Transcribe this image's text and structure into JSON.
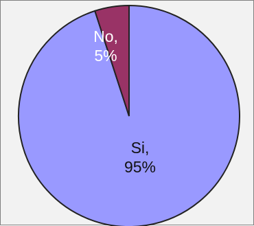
{
  "chart_data": {
    "type": "pie",
    "slices": [
      {
        "label": "Si",
        "value": 95,
        "value_text": "95%",
        "color": "#9999ff",
        "label_color": "#111111"
      },
      {
        "label": "No",
        "value": 5,
        "value_text": "5%",
        "color": "#993366",
        "label_color": "#ffffff"
      }
    ],
    "start_angle_deg": 0,
    "direction": "clockwise",
    "legend": "none",
    "edge_color": "#222222"
  }
}
